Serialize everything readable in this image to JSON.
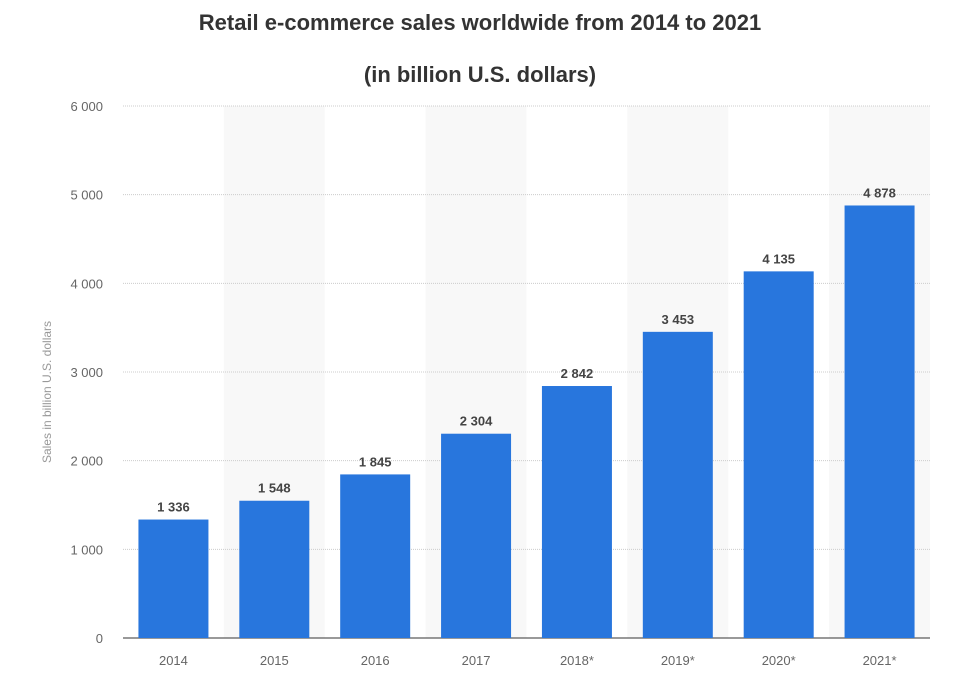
{
  "chart_data": {
    "type": "bar",
    "title": "Retail e-commerce sales worldwide from 2014 to 2021",
    "subtitle": "(in billion U.S. dollars)",
    "xlabel": "",
    "ylabel": "Sales in billion U.S. dollars",
    "categories": [
      "2014",
      "2015",
      "2016",
      "2017",
      "2018*",
      "2019*",
      "2020*",
      "2021*"
    ],
    "values": [
      1336,
      1548,
      1845,
      2304,
      2842,
      3453,
      4135,
      4878
    ],
    "value_labels": [
      "1 336",
      "1 548",
      "1 845",
      "2 304",
      "2 842",
      "3 453",
      "4 135",
      "4 878"
    ],
    "ylim": [
      0,
      6000
    ],
    "yticks": [
      0,
      1000,
      2000,
      3000,
      4000,
      5000,
      6000
    ],
    "ytick_labels": [
      "0",
      "1 000",
      "2 000",
      "3 000",
      "4 000",
      "5 000",
      "6 000"
    ],
    "grid": true,
    "bar_color": "#2876dd"
  }
}
